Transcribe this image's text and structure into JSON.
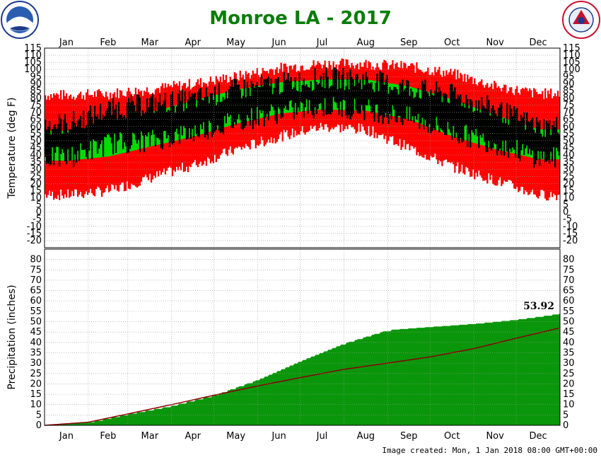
{
  "page": {
    "title": "Monroe LA - 2017",
    "footer": "Image created: Mon, 1 Jan 2018 08:00 GMT+00:00",
    "logos": {
      "left": "noaa-logo",
      "right": "nws-logo"
    }
  },
  "colors": {
    "title": "#0a7d0a",
    "record_high": "#ff0000",
    "record_low": "#0000ff",
    "normal_range": "#00dd00",
    "actual_range": "#000000",
    "precip_actual": "#0a960a",
    "precip_normal_line": "#8b0000",
    "grid": "#999999"
  },
  "chart_data": [
    {
      "type": "area",
      "panel": "temperature",
      "ylabel": "Temperature (deg F)",
      "ylim": [
        -25,
        115
      ],
      "yticks": [
        -20,
        -15,
        -10,
        -5,
        0,
        5,
        10,
        15,
        20,
        25,
        30,
        35,
        40,
        45,
        50,
        55,
        60,
        65,
        70,
        75,
        80,
        85,
        90,
        95,
        100,
        105,
        110,
        115
      ],
      "months": [
        "Jan",
        "Feb",
        "Mar",
        "Apr",
        "May",
        "Jun",
        "Jul",
        "Aug",
        "Sep",
        "Oct",
        "Nov",
        "Dec"
      ],
      "grid": true,
      "series": [
        {
          "key": "record_high",
          "color": "#ff0000",
          "values": [
            82,
            83,
            86,
            90,
            95,
            101,
            104,
            104,
            102,
            97,
            88,
            83
          ]
        },
        {
          "key": "normal_high",
          "color": "#00dd00",
          "values": [
            57,
            61,
            70,
            78,
            86,
            91,
            93,
            93,
            88,
            79,
            68,
            58
          ]
        },
        {
          "key": "normal_low",
          "color": "#00dd00",
          "values": [
            36,
            39,
            46,
            53,
            62,
            69,
            72,
            71,
            65,
            53,
            44,
            37
          ]
        },
        {
          "key": "record_low",
          "color": "#0000ff",
          "values": [
            12,
            15,
            24,
            33,
            44,
            53,
            60,
            58,
            45,
            32,
            22,
            12
          ]
        },
        {
          "key": "actual_high",
          "color": "#000000",
          "values": [
            62,
            72,
            76,
            79,
            86,
            90,
            94,
            93,
            87,
            82,
            72,
            60
          ]
        },
        {
          "key": "actual_low",
          "color": "#000000",
          "values": [
            38,
            48,
            50,
            56,
            64,
            70,
            74,
            72,
            66,
            56,
            48,
            38
          ]
        }
      ]
    },
    {
      "type": "area",
      "panel": "precipitation",
      "ylabel": "Precipitation (inches)",
      "ylim": [
        0,
        85
      ],
      "yticks": [
        0,
        5,
        10,
        15,
        20,
        25,
        30,
        35,
        40,
        45,
        50,
        55,
        60,
        65,
        70,
        75,
        80
      ],
      "months": [
        "Jan",
        "Feb",
        "Mar",
        "Apr",
        "May",
        "Jun",
        "Jul",
        "Aug",
        "Sep",
        "Oct",
        "Nov",
        "Dec"
      ],
      "grid": true,
      "annotation": "53.92",
      "series": [
        {
          "key": "cumulative_actual",
          "color": "#0a960a",
          "values": [
            1.5,
            5.5,
            9.5,
            14.5,
            22,
            31,
            39.5,
            46,
            47.5,
            49,
            51,
            53.92
          ]
        },
        {
          "key": "cumulative_normal",
          "color": "#8b0000",
          "values": [
            1.5,
            5.5,
            10,
            14.5,
            19,
            23,
            27,
            30,
            33,
            37,
            42,
            47
          ]
        }
      ]
    }
  ]
}
